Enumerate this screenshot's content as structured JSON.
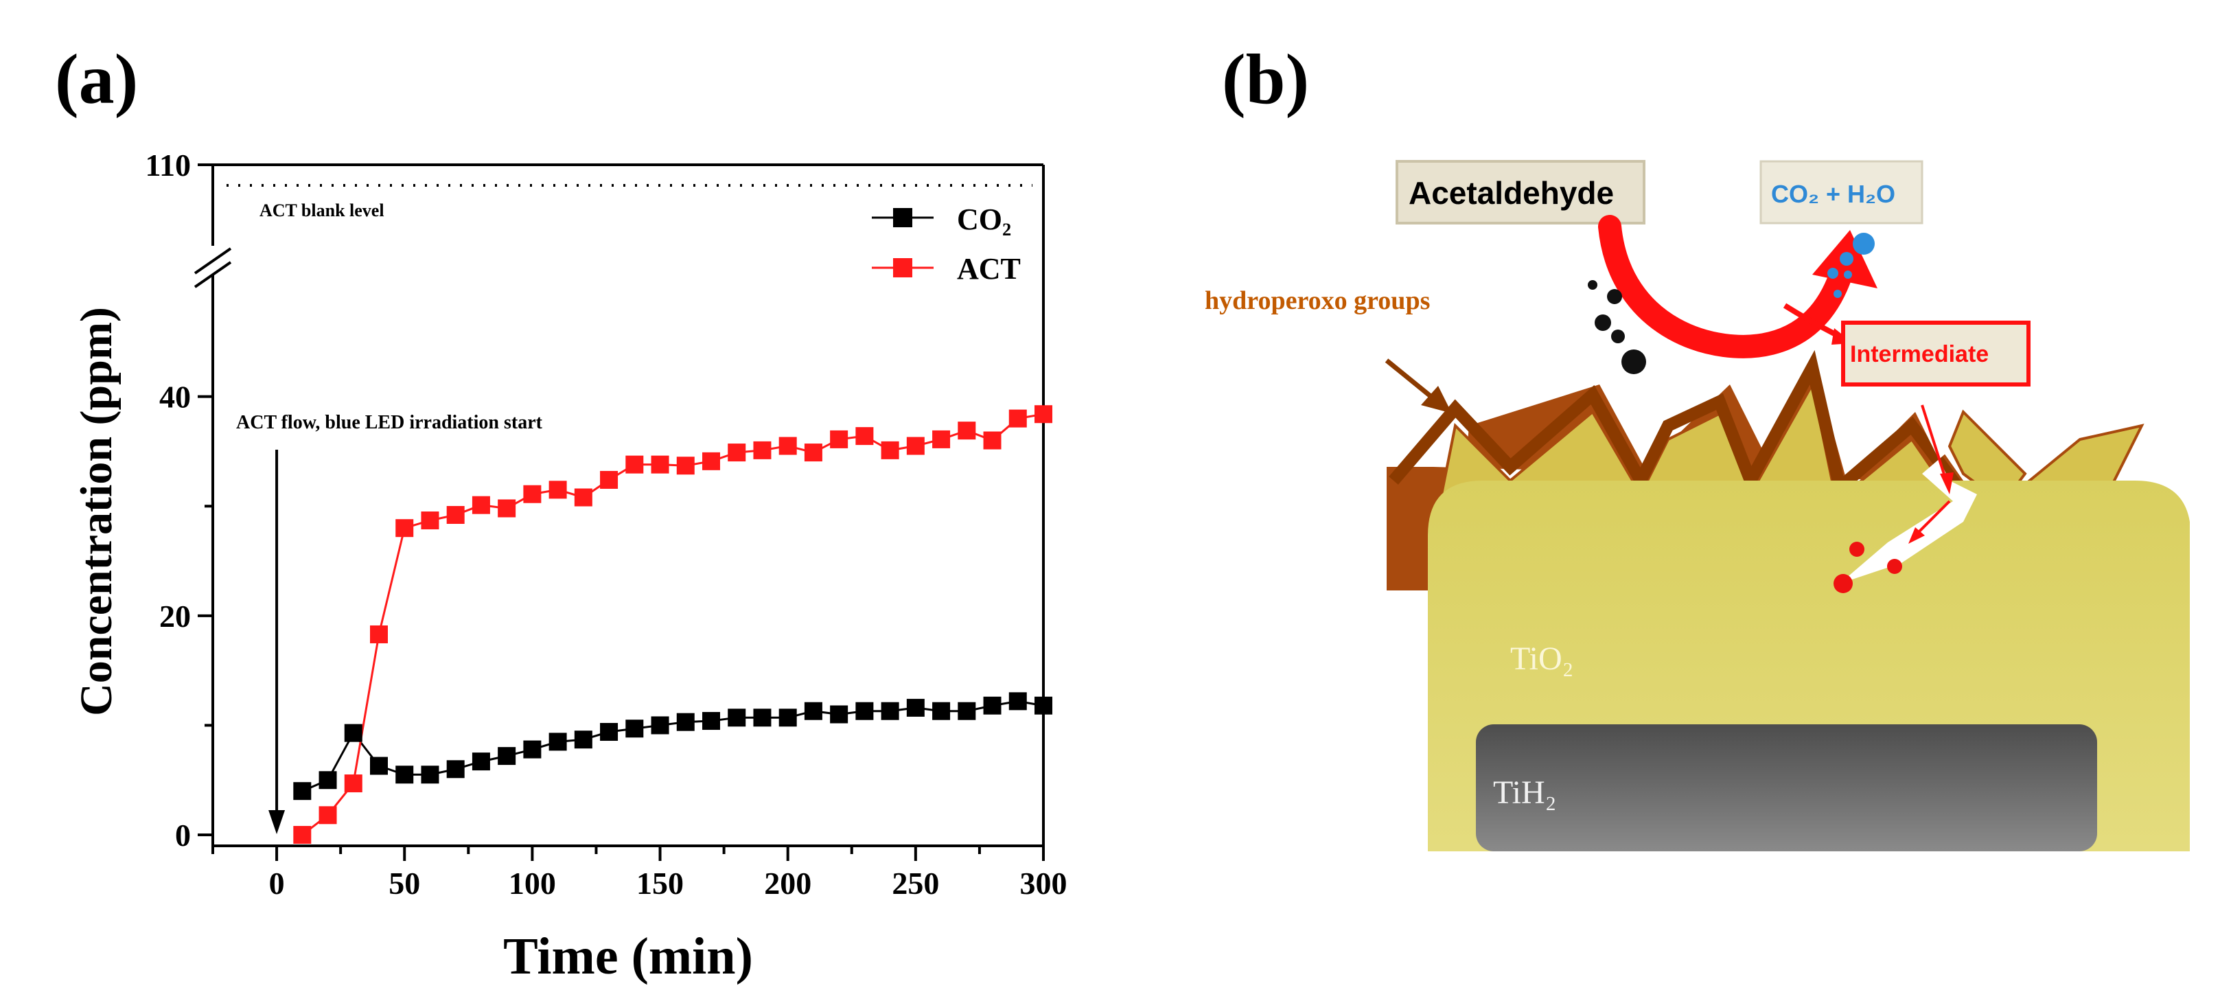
{
  "panels": {
    "a": {
      "label": "(a)"
    },
    "b": {
      "label": "(b)"
    }
  },
  "chart_data": {
    "type": "line",
    "title": "",
    "xlabel": "Time (min)",
    "ylabel": "Concentration (ppm)",
    "xlim": [
      -25,
      300
    ],
    "ylim_lower": [
      -1,
      48
    ],
    "ylim_break_top": 110,
    "x_ticks": [
      0,
      50,
      100,
      150,
      200,
      250,
      300
    ],
    "y_ticks_lower": [
      0,
      20,
      40
    ],
    "y_tick_top": 110,
    "legend": [
      "CO₂",
      "ACT"
    ],
    "legend_position": "top-right",
    "blank_level": {
      "value": 110,
      "label": "ACT blank level"
    },
    "annotation": {
      "text": "ACT flow, blue LED irradiation start",
      "x": 0
    },
    "series": [
      {
        "name": "CO₂",
        "color": "#000000",
        "x": [
          10,
          20,
          30,
          40,
          50,
          60,
          70,
          80,
          90,
          100,
          110,
          120,
          130,
          140,
          150,
          160,
          170,
          180,
          190,
          200,
          210,
          220,
          230,
          240,
          250,
          260,
          270,
          280,
          290,
          300
        ],
        "y": [
          4,
          5,
          9.3,
          6.3,
          5.5,
          5.5,
          6,
          6.7,
          7.2,
          7.8,
          8.5,
          8.7,
          9.4,
          9.7,
          10,
          10.3,
          10.4,
          10.7,
          10.7,
          10.7,
          11.3,
          11,
          11.3,
          11.3,
          11.6,
          11.3,
          11.3,
          11.8,
          12.2,
          11.8
        ]
      },
      {
        "name": "ACT",
        "color": "#ff1a1a",
        "x": [
          10,
          20,
          30,
          40,
          50,
          60,
          70,
          80,
          90,
          100,
          110,
          120,
          130,
          140,
          150,
          160,
          170,
          180,
          190,
          200,
          210,
          220,
          230,
          240,
          250,
          260,
          270,
          280,
          290,
          300
        ],
        "y": [
          0,
          1.8,
          4.7,
          18.3,
          28,
          28.7,
          29.2,
          30.1,
          29.8,
          31.1,
          31.5,
          30.8,
          32.4,
          33.8,
          33.8,
          33.7,
          34.1,
          34.9,
          35.1,
          35.5,
          34.9,
          36.1,
          36.4,
          35.1,
          35.5,
          36.1,
          36.9,
          36,
          38,
          38.4
        ]
      }
    ]
  },
  "diagram": {
    "reactant": "Acetaldehyde",
    "products": "CO₂ + H₂O",
    "intermediate": "Intermediate",
    "hydroperoxo": "hydroperoxo groups",
    "layer_tio2": "TiO₂",
    "layer_tih2": "TiH₂",
    "colors": {
      "tio2_fill": "#ddd46f",
      "spike_fill": "#d6c24e",
      "hydroperoxo_line": "#8b3a00",
      "hydroperoxo_text": "#c25a00",
      "arrow_red": "#ff1010",
      "product_text": "#2e89d6",
      "box_fill": "#e8e2cf"
    }
  }
}
